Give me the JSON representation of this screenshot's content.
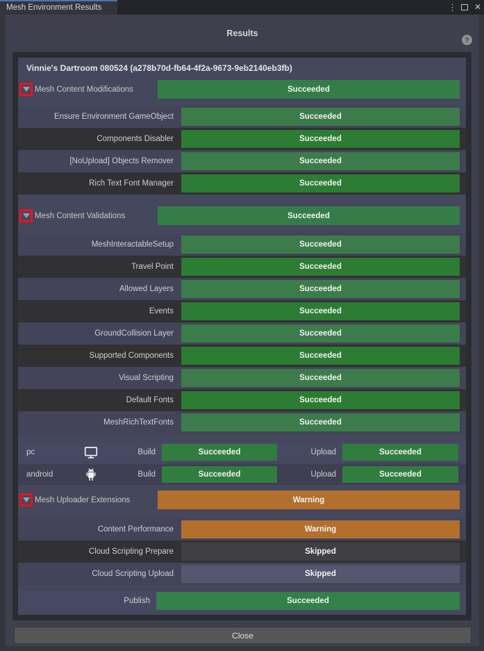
{
  "window": {
    "tab_title": "Mesh Environment Results"
  },
  "titlebar": {
    "menu_glyph": "⋮",
    "close_glyph": "✕"
  },
  "header": {
    "title": "Results",
    "help_glyph": "?"
  },
  "footer": {
    "close_label": "Close"
  },
  "colors": {
    "succeeded_section": "#337e47",
    "succeeded_light": "#3c7c4a",
    "succeeded_dark": "#2c7c33",
    "succeeded_platform": "#317d3f",
    "succeeded_publish": "#348049",
    "warning": "#b3702c",
    "skipped_light": "#555670",
    "skipped_dark": "#404044",
    "annotation_red": "#e8131f",
    "row_light": "#434459",
    "row_dark": "#313134",
    "platform_light": "#474962",
    "platform_dark": "#3e3f53",
    "publish_row": "#474962"
  },
  "rows": [
    {
      "type": "title",
      "label": "Vinnie's Dartroom 080524 (a278b70d-fb64-4f2a-9673-9eb2140eb3fb)"
    },
    {
      "type": "gap",
      "size": 2
    },
    {
      "type": "section",
      "label": "Mesh Content Modifications",
      "status": "Succeeded",
      "kind": "succeeded",
      "annotated": true
    },
    {
      "type": "gap",
      "size": 10
    },
    {
      "type": "sub",
      "label": "Ensure Environment GameObject",
      "status": "Succeeded",
      "kind": "succeeded",
      "shade": "light"
    },
    {
      "type": "sub",
      "label": "Components Disabler",
      "status": "Succeeded",
      "kind": "succeeded",
      "shade": "dark"
    },
    {
      "type": "sub",
      "label": "[NoUpload] Objects Remover",
      "status": "Succeeded",
      "kind": "succeeded",
      "shade": "light"
    },
    {
      "type": "sub",
      "label": "Rich Text Font Manager",
      "status": "Succeeded",
      "kind": "succeeded",
      "shade": "dark"
    },
    {
      "type": "gap",
      "size": 17
    },
    {
      "type": "section",
      "label": "Mesh Content Validations",
      "status": "Succeeded",
      "kind": "succeeded",
      "annotated": true
    },
    {
      "type": "gap",
      "size": 12
    },
    {
      "type": "sub",
      "label": "MeshInteractableSetup",
      "status": "Succeeded",
      "kind": "succeeded",
      "shade": "light"
    },
    {
      "type": "sub",
      "label": "Travel Point",
      "status": "Succeeded",
      "kind": "succeeded",
      "shade": "dark"
    },
    {
      "type": "sub",
      "label": "Allowed Layers",
      "status": "Succeeded",
      "kind": "succeeded",
      "shade": "light"
    },
    {
      "type": "sub",
      "label": "Events",
      "status": "Succeeded",
      "kind": "succeeded",
      "shade": "dark"
    },
    {
      "type": "sub",
      "label": "GroundCollision Layer",
      "status": "Succeeded",
      "kind": "succeeded",
      "shade": "light"
    },
    {
      "type": "sub",
      "label": "Supported Components",
      "status": "Succeeded",
      "kind": "succeeded",
      "shade": "dark"
    },
    {
      "type": "sub",
      "label": "Visual Scripting",
      "status": "Succeeded",
      "kind": "succeeded",
      "shade": "light"
    },
    {
      "type": "sub",
      "label": "Default Fonts",
      "status": "Succeeded",
      "kind": "succeeded",
      "shade": "dark"
    },
    {
      "type": "sub",
      "label": "MeshRichTextFonts",
      "status": "Succeeded",
      "kind": "succeeded",
      "shade": "light"
    },
    {
      "type": "gap",
      "size": 12
    },
    {
      "type": "platform",
      "name": "pc",
      "icon": "monitor-icon",
      "build_label": "Build",
      "build_status": "Succeeded",
      "upload_label": "Upload",
      "upload_status": "Succeeded",
      "shade": "light"
    },
    {
      "type": "gap",
      "size": 2
    },
    {
      "type": "platform",
      "name": "android",
      "icon": "android-icon",
      "build_label": "Build",
      "build_status": "Succeeded",
      "upload_label": "Upload",
      "upload_status": "Succeeded",
      "shade": "dark"
    },
    {
      "type": "gap",
      "size": 8
    },
    {
      "type": "section",
      "label": "Mesh Uploader Extensions",
      "status": "Warning",
      "kind": "warning",
      "annotated": true
    },
    {
      "type": "gap",
      "size": 13
    },
    {
      "type": "sub",
      "label": "Content Performance",
      "status": "Warning",
      "kind": "warning",
      "shade": "light"
    },
    {
      "type": "sub",
      "label": "Cloud Scripting Prepare",
      "status": "Skipped",
      "kind": "skipped",
      "shade": "dark"
    },
    {
      "type": "sub",
      "label": "Cloud Scripting Upload",
      "status": "Skipped",
      "kind": "skipped",
      "shade": "light"
    },
    {
      "type": "gap",
      "size": 8
    },
    {
      "type": "publish",
      "label": "Publish",
      "status": "Succeeded",
      "kind": "succeeded"
    }
  ]
}
